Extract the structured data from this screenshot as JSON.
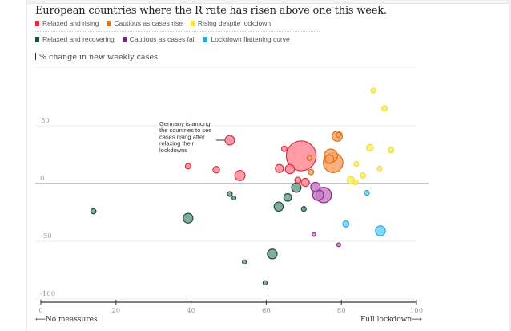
{
  "chart_data": {
    "type": "scatter",
    "title": "European countries where the R rate has risen above one this week.",
    "ylabel": "% change in new weekly cases",
    "xlabel_left": "No meassures",
    "xlabel_right": "Full lockdown",
    "xlim": [
      0,
      100
    ],
    "ylim": [
      -100,
      100
    ],
    "xticks": [
      0,
      20,
      40,
      60,
      80,
      100
    ],
    "yticks": [
      50,
      0,
      -50,
      -100
    ],
    "grid": true,
    "annotation": {
      "text": [
        "Germany is among",
        "the countries to see",
        "cases rising after",
        "relaxing their",
        "lockdowns"
      ],
      "x": 50.3,
      "y": 37.5
    },
    "legend": [
      {
        "name": "Relaxed and rising",
        "color": "#e8283c"
      },
      {
        "name": "Cautious as cases rise",
        "color": "#e06f1a"
      },
      {
        "name": "Rising despite lockdown",
        "color": "#f5e13a"
      },
      {
        "name": "Relaxed and recovering",
        "color": "#1f4f3a"
      },
      {
        "name": "Cautious as cases fall",
        "color": "#7b2380"
      },
      {
        "name": "Lockdown flattening curve",
        "color": "#2aa8de"
      }
    ],
    "series": [
      {
        "name": "Relaxed and rising",
        "fill": "#ff8a94",
        "stroke": "#d9304a",
        "points": [
          {
            "x": 50.3,
            "y": 37.5,
            "size": 3
          },
          {
            "x": 39.2,
            "y": 15,
            "size": 1
          },
          {
            "x": 46.7,
            "y": 12,
            "size": 1.5
          },
          {
            "x": 53,
            "y": 7,
            "size": 3.5
          },
          {
            "x": 64.8,
            "y": 30,
            "size": 1
          },
          {
            "x": 69.3,
            "y": 24,
            "size": 30
          },
          {
            "x": 63.5,
            "y": 13,
            "size": 2.2
          },
          {
            "x": 66.3,
            "y": 12.5,
            "size": 2.8
          },
          {
            "x": 68.4,
            "y": 3,
            "size": 1.2
          },
          {
            "x": 70.4,
            "y": 1,
            "size": 2.2
          }
        ]
      },
      {
        "name": "Cautious as cases rise",
        "fill": "#f7a366",
        "stroke": "#d8701c",
        "points": [
          {
            "x": 78.9,
            "y": 41,
            "size": 3.5
          },
          {
            "x": 79.2,
            "y": 42,
            "size": 0.8
          },
          {
            "x": 77.8,
            "y": 18,
            "size": 13
          },
          {
            "x": 77.2,
            "y": 24,
            "size": 6
          },
          {
            "x": 76.8,
            "y": 21,
            "size": 2.5
          },
          {
            "x": 71.9,
            "y": 10,
            "size": 1
          },
          {
            "x": 71.5,
            "y": 22,
            "size": 0.8
          }
        ]
      },
      {
        "name": "Rising despite lockdown",
        "fill": "#fbef6a",
        "stroke": "#ece03a",
        "points": [
          {
            "x": 88.5,
            "y": 80.5,
            "size": 0.8
          },
          {
            "x": 91.5,
            "y": 65,
            "size": 1
          },
          {
            "x": 87.6,
            "y": 31,
            "size": 1.5
          },
          {
            "x": 93.2,
            "y": 29,
            "size": 1
          },
          {
            "x": 84,
            "y": 17,
            "size": 0.8
          },
          {
            "x": 90.2,
            "y": 13,
            "size": 0.8
          },
          {
            "x": 85.7,
            "y": 7,
            "size": 1
          },
          {
            "x": 82.5,
            "y": 3,
            "size": 1.8
          },
          {
            "x": 83.8,
            "y": 1,
            "size": 0.8
          }
        ]
      },
      {
        "name": "Cautious as cases fall",
        "fill": "#c97fc6",
        "stroke": "#8a2c88",
        "points": [
          {
            "x": 73.1,
            "y": -3,
            "size": 3
          },
          {
            "x": 75.3,
            "y": -10,
            "size": 8
          },
          {
            "x": 73.8,
            "y": -10,
            "size": 4
          },
          {
            "x": 72.7,
            "y": -44,
            "size": 0.5
          },
          {
            "x": 79.3,
            "y": -53,
            "size": 0.5
          }
        ]
      },
      {
        "name": "Relaxed and recovering",
        "fill": "#6d9d8a",
        "stroke": "#1f4f3a",
        "points": [
          {
            "x": 14,
            "y": -24,
            "size": 0.9
          },
          {
            "x": 39.2,
            "y": -30,
            "size": 3.2
          },
          {
            "x": 50.3,
            "y": -9,
            "size": 0.8
          },
          {
            "x": 51.4,
            "y": -12.5,
            "size": 0.5
          },
          {
            "x": 68,
            "y": -3.5,
            "size": 3
          },
          {
            "x": 65.7,
            "y": -12,
            "size": 2
          },
          {
            "x": 63.3,
            "y": -20,
            "size": 2.8
          },
          {
            "x": 70,
            "y": -22,
            "size": 0.8
          },
          {
            "x": 61.6,
            "y": -61,
            "size": 3.2
          },
          {
            "x": 54.2,
            "y": -68,
            "size": 0.6
          },
          {
            "x": 59.7,
            "y": -86,
            "size": 0.6
          }
        ]
      },
      {
        "name": "Lockdown flattening curve",
        "fill": "#6fd2f7",
        "stroke": "#2aa8de",
        "points": [
          {
            "x": 86.8,
            "y": -8,
            "size": 0.8
          },
          {
            "x": 81.2,
            "y": -35,
            "size": 1.3
          },
          {
            "x": 90.4,
            "y": -41,
            "size": 3.3
          }
        ]
      }
    ]
  }
}
